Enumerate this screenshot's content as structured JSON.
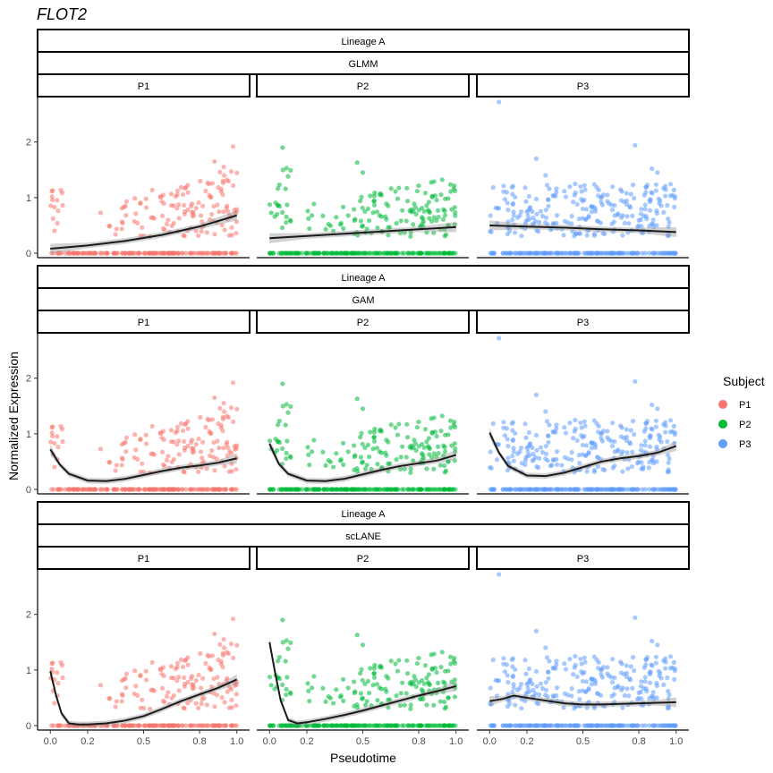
{
  "chart_data": {
    "type": "scatter",
    "title": "FLOT2",
    "xlabel": "Pseudotime",
    "ylabel": "Normalized Expression",
    "xlim": [
      -0.03,
      1.03
    ],
    "ylim": [
      -0.08,
      2.8
    ],
    "x_ticks": [
      0.0,
      0.2,
      0.5,
      0.8,
      1.0
    ],
    "x_tick_labels": [
      "0.0",
      "0.2",
      "0.5",
      "0.8",
      "1.0"
    ],
    "y_ticks": [
      0,
      1,
      2
    ],
    "y_tick_labels": [
      "0",
      "1",
      "2"
    ],
    "grid": false,
    "legend": {
      "title": "Subject",
      "placement": "right",
      "entries": [
        {
          "label": "P1",
          "color": "#F8766D"
        },
        {
          "label": "P2",
          "color": "#00BA38"
        },
        {
          "label": "P3",
          "color": "#619CFF"
        }
      ]
    },
    "strip_labels": {
      "lineage": "Lineage A",
      "subjects": [
        "P1",
        "P2",
        "P3"
      ]
    },
    "rows": [
      {
        "model": "GLMM",
        "panels": [
          {
            "subject": "P1",
            "fit_x": [
              0.0,
              0.2,
              0.4,
              0.6,
              0.8,
              1.0
            ],
            "fit_y": [
              0.08,
              0.14,
              0.22,
              0.33,
              0.48,
              0.68
            ]
          },
          {
            "subject": "P2",
            "fit_x": [
              0.0,
              0.2,
              0.4,
              0.6,
              0.8,
              1.0
            ],
            "fit_y": [
              0.27,
              0.31,
              0.35,
              0.39,
              0.43,
              0.47
            ]
          },
          {
            "subject": "P3",
            "fit_x": [
              0.0,
              0.2,
              0.4,
              0.6,
              0.8,
              1.0
            ],
            "fit_y": [
              0.5,
              0.48,
              0.46,
              0.43,
              0.41,
              0.38
            ]
          }
        ]
      },
      {
        "model": "GAM",
        "panels": [
          {
            "subject": "P1",
            "fit_x": [
              0.0,
              0.05,
              0.1,
              0.2,
              0.3,
              0.4,
              0.5,
              0.6,
              0.7,
              0.8,
              0.9,
              1.0
            ],
            "fit_y": [
              0.72,
              0.45,
              0.28,
              0.16,
              0.15,
              0.19,
              0.26,
              0.33,
              0.39,
              0.43,
              0.48,
              0.56
            ]
          },
          {
            "subject": "P2",
            "fit_x": [
              0.0,
              0.05,
              0.1,
              0.2,
              0.3,
              0.4,
              0.5,
              0.6,
              0.7,
              0.8,
              0.9,
              1.0
            ],
            "fit_y": [
              0.82,
              0.46,
              0.28,
              0.16,
              0.15,
              0.19,
              0.27,
              0.35,
              0.42,
              0.47,
              0.52,
              0.62
            ]
          },
          {
            "subject": "P3",
            "fit_x": [
              0.0,
              0.05,
              0.1,
              0.2,
              0.3,
              0.4,
              0.5,
              0.6,
              0.7,
              0.8,
              0.9,
              1.0
            ],
            "fit_y": [
              1.02,
              0.66,
              0.42,
              0.25,
              0.24,
              0.3,
              0.4,
              0.5,
              0.56,
              0.6,
              0.66,
              0.78
            ]
          }
        ]
      },
      {
        "model": "scLANE",
        "panels": [
          {
            "subject": "P1",
            "fit_x": [
              0.0,
              0.03,
              0.06,
              0.1,
              0.15,
              0.2,
              0.3,
              0.4,
              0.5,
              0.6,
              0.7,
              0.8,
              0.9,
              1.0
            ],
            "fit_y": [
              0.98,
              0.55,
              0.22,
              0.04,
              0.02,
              0.02,
              0.04,
              0.09,
              0.17,
              0.3,
              0.44,
              0.56,
              0.68,
              0.83
            ]
          },
          {
            "subject": "P2",
            "fit_x": [
              0.0,
              0.03,
              0.06,
              0.1,
              0.15,
              0.2,
              0.3,
              0.4,
              0.5,
              0.6,
              0.7,
              0.8,
              0.9,
              1.0
            ],
            "fit_y": [
              1.5,
              0.95,
              0.45,
              0.1,
              0.04,
              0.06,
              0.12,
              0.19,
              0.27,
              0.36,
              0.45,
              0.54,
              0.62,
              0.71
            ]
          },
          {
            "subject": "P3",
            "fit_x": [
              0.0,
              0.07,
              0.13,
              0.2,
              0.3,
              0.4,
              0.5,
              0.6,
              0.7,
              0.8,
              0.9,
              1.0
            ],
            "fit_y": [
              0.44,
              0.48,
              0.54,
              0.5,
              0.45,
              0.4,
              0.38,
              0.38,
              0.39,
              0.4,
              0.41,
              0.42
            ]
          }
        ]
      }
    ]
  }
}
